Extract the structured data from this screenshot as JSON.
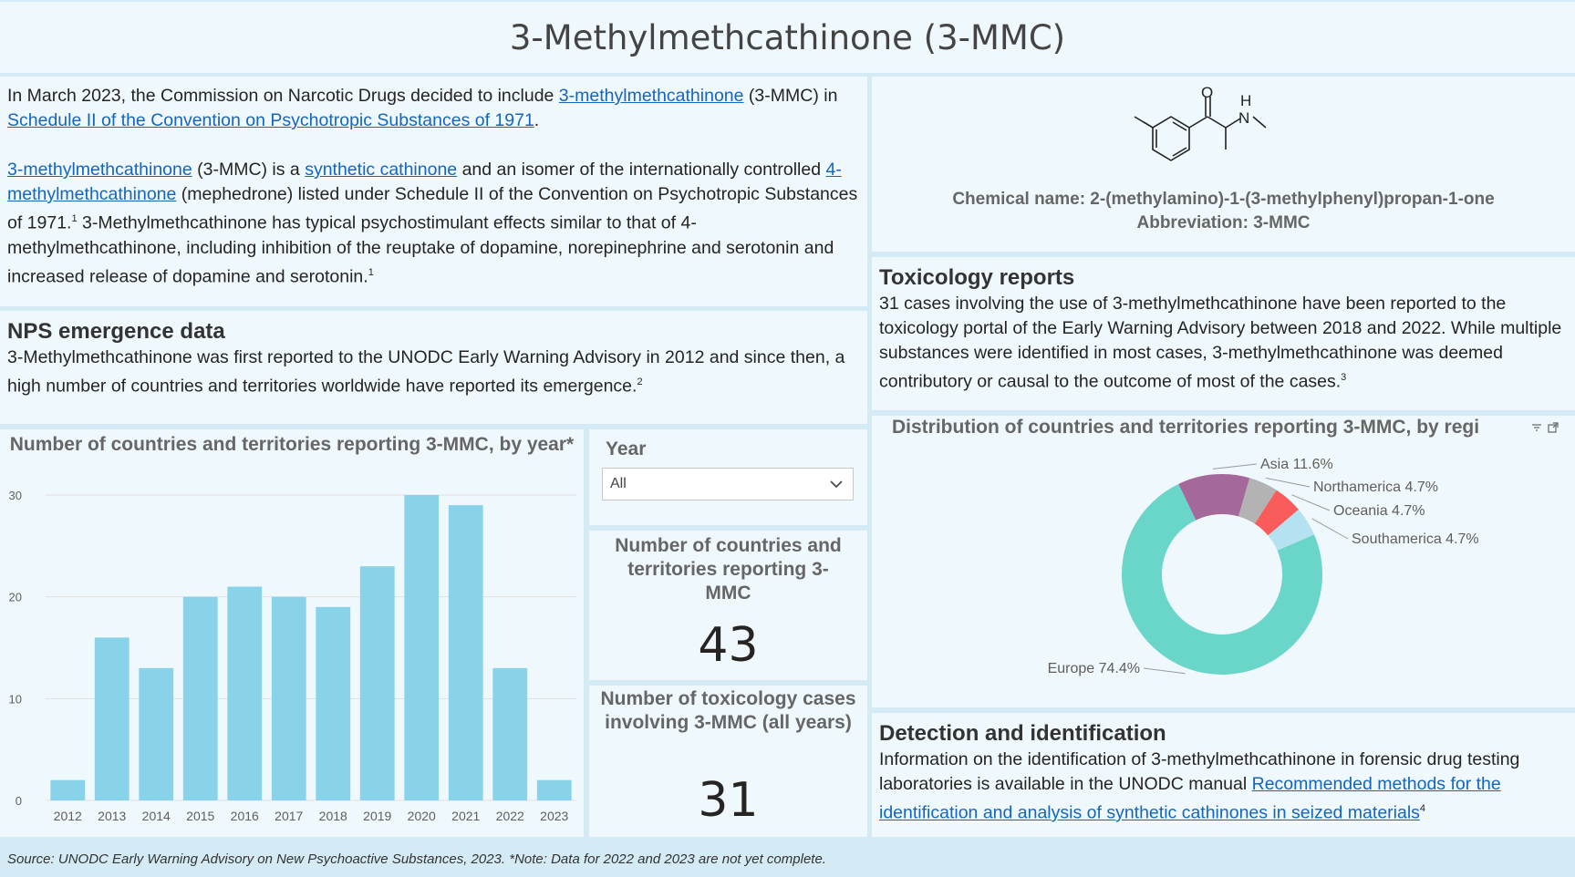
{
  "page_title": "3-Methylmethcathinone (3-MMC)",
  "intro": {
    "p1_a": "In March 2023, the Commission on Narcotic Drugs decided to include ",
    "p1_link1": "3-methylmethcathinone",
    "p1_b": " (3-MMC) in ",
    "p1_link2": "Schedule II of the Convention on Psychotropic Substances of 1971",
    "p1_c": ".",
    "p2_link1": "3-methylmethcathinone",
    "p2_a": " (3-MMC) is a ",
    "p2_link2": "synthetic cathinone",
    "p2_b": " and an isomer of the internationally controlled ",
    "p2_link3": "4-methylmethcathinone",
    "p2_c": " (mephedrone) listed under Schedule II of the Convention on Psychotropic Substances of 1971.",
    "p2_sup1": "1",
    "p2_d": " 3-Methylmethcathinone has typical psychostimulant effects similar to that of 4-methylmethcathinone, including inhibition of the reuptake of dopamine, norepinephrine and serotonin and increased release of dopamine and serotonin.",
    "p2_sup2": "1"
  },
  "emergence": {
    "heading": "NPS emergence data",
    "text": "3-Methylmethcathinone was first reported to the UNODC Early Warning Advisory in 2012 and since then, a high number of countries and territories worldwide have reported its emergence.",
    "sup": "2"
  },
  "chemical": {
    "name": "Chemical name: 2-(methylamino)-1-(3-methylphenyl)propan-1-one",
    "abbr": "Abbreviation: 3-MMC",
    "atom_o": "O",
    "atom_h": "H",
    "atom_n": "N"
  },
  "toxicology": {
    "heading": "Toxicology reports",
    "text": "31 cases involving the use of 3-methylmethcathinone have been reported to the toxicology portal of the Early Warning Advisory between 2018 and 2022. While multiple substances were identified in most cases, 3-methylmethcathinone was deemed contributory or causal to the outcome of most of the cases.",
    "sup": "3"
  },
  "detection": {
    "heading": "Detection and identification",
    "text_a": "Information on the identification of 3-methylmethcathinone in forensic drug testing laboratories is available in the UNODC manual ",
    "link": "Recommended methods for the identification and analysis of synthetic cathinones in seized materials",
    "sup": "4"
  },
  "year_filter": {
    "label": "Year",
    "selected": "All"
  },
  "card_countries": {
    "title": "Number of countries and territories reporting 3-MMC",
    "value": "43"
  },
  "card_tox": {
    "title": "Number of toxicology cases involving 3-MMC (all years)",
    "value": "31"
  },
  "footer": "Source: UNODC Early Warning Advisory on New Psychoactive Substances, 2023. *Note: Data for 2022 and 2023 are not yet complete.",
  "colors": {
    "bar": "#89d3ea",
    "europe": "#6ad6c9",
    "asia": "#a4689a",
    "northamerica": "#b3b3b3",
    "oceania": "#fa5c5c",
    "southamerica": "#b5e2f0"
  },
  "chart_data": [
    {
      "type": "bar",
      "title": "Number of countries and territories reporting 3-MMC, by year*",
      "categories": [
        "2012",
        "2013",
        "2014",
        "2015",
        "2016",
        "2017",
        "2018",
        "2019",
        "2020",
        "2021",
        "2022",
        "2023"
      ],
      "values": [
        2,
        16,
        13,
        20,
        21,
        20,
        19,
        23,
        30,
        29,
        13,
        2
      ],
      "ylim": [
        0,
        30
      ],
      "yticks": [
        "0",
        "10",
        "20",
        "30"
      ],
      "grid": true
    },
    {
      "type": "pie",
      "title": "Distribution of countries and territories reporting 3-MMC, by regi",
      "donut": true,
      "labels": [
        "Asia",
        "Northamerica",
        "Oceania",
        "Southamerica",
        "Europe"
      ],
      "values": [
        11.6,
        4.7,
        4.7,
        4.7,
        74.4
      ],
      "value_labels": [
        "Asia 11.6%",
        "Northamerica 4.7%",
        "Oceania 4.7%",
        "Southamerica 4.7%",
        "Europe 74.4%"
      ]
    }
  ]
}
